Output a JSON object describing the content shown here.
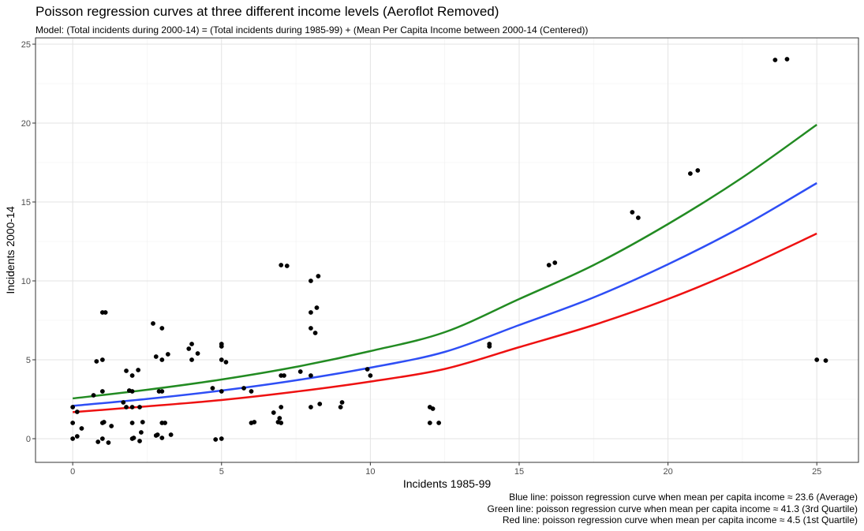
{
  "chart_data": {
    "type": "scatter",
    "title": "Poisson regression curves at three different income levels (Aeroflot Removed)",
    "subtitle": "Model: (Total incidents during 2000-14) = (Total incidents during 1985-99) + (Mean Per Capita Income between 2000-14 (Centered))",
    "xlabel": "Incidents 1985-99",
    "ylabel": "Incidents 2000-14",
    "xlim": [
      -1.25,
      26.4
    ],
    "ylim": [
      -1.5,
      25.4
    ],
    "x_ticks": [
      0,
      5,
      10,
      15,
      20,
      25
    ],
    "y_ticks": [
      0,
      5,
      10,
      15,
      20,
      25
    ],
    "grid": true,
    "points": [
      [
        0,
        2
      ],
      [
        0,
        1
      ],
      [
        0,
        0
      ],
      [
        0.15,
        1.7
      ],
      [
        0.15,
        0.15
      ],
      [
        0.3,
        0.65
      ],
      [
        0.7,
        2.75
      ],
      [
        0.8,
        4.9
      ],
      [
        0.85,
        -0.2
      ],
      [
        1.0,
        5.0
      ],
      [
        1.0,
        3.0
      ],
      [
        1.0,
        1.0
      ],
      [
        1.05,
        1.05
      ],
      [
        1.0,
        0.0
      ],
      [
        1.2,
        -0.25
      ],
      [
        1.3,
        0.8
      ],
      [
        1.0,
        8.0
      ],
      [
        1.1,
        8.0
      ],
      [
        1.7,
        2.3
      ],
      [
        1.8,
        4.3
      ],
      [
        1.8,
        2.0
      ],
      [
        1.9,
        3.05
      ],
      [
        2.0,
        3.0
      ],
      [
        2.0,
        4.0
      ],
      [
        2.0,
        2.0
      ],
      [
        2.0,
        1.0
      ],
      [
        2.0,
        0.0
      ],
      [
        2.05,
        0.05
      ],
      [
        2.2,
        4.35
      ],
      [
        2.25,
        2.0
      ],
      [
        2.25,
        -0.15
      ],
      [
        2.3,
        0.4
      ],
      [
        2.35,
        1.05
      ],
      [
        2.7,
        7.3
      ],
      [
        2.8,
        5.2
      ],
      [
        2.8,
        0.2
      ],
      [
        2.85,
        0.25
      ],
      [
        2.9,
        3.0
      ],
      [
        3.0,
        3.0
      ],
      [
        3.0,
        5.0
      ],
      [
        3.0,
        7.0
      ],
      [
        3.0,
        1.0
      ],
      [
        3.1,
        1.0
      ],
      [
        3.0,
        0.05
      ],
      [
        3.2,
        5.35
      ],
      [
        3.3,
        0.25
      ],
      [
        3.9,
        5.7
      ],
      [
        4.0,
        6.0
      ],
      [
        4.0,
        5.0
      ],
      [
        4.2,
        5.4
      ],
      [
        4.7,
        3.2
      ],
      [
        4.8,
        -0.05
      ],
      [
        5.0,
        0.0
      ],
      [
        5.0,
        6.0
      ],
      [
        5.0,
        5.85
      ],
      [
        5.0,
        5.0
      ],
      [
        5.0,
        3.0
      ],
      [
        5.15,
        4.85
      ],
      [
        5.75,
        3.2
      ],
      [
        6.0,
        3.0
      ],
      [
        6.0,
        1.0
      ],
      [
        6.1,
        1.05
      ],
      [
        6.75,
        1.65
      ],
      [
        6.9,
        1.05
      ],
      [
        6.95,
        1.3
      ],
      [
        7.0,
        1.0
      ],
      [
        7.0,
        2.0
      ],
      [
        7.0,
        4.0
      ],
      [
        7.1,
        4.0
      ],
      [
        7.0,
        11.0
      ],
      [
        7.2,
        10.95
      ],
      [
        7.65,
        4.25
      ],
      [
        8.0,
        10.0
      ],
      [
        8.0,
        8.0
      ],
      [
        8.0,
        7.0
      ],
      [
        8.0,
        4.0
      ],
      [
        8.0,
        2.0
      ],
      [
        8.15,
        6.7
      ],
      [
        8.2,
        8.3
      ],
      [
        8.25,
        10.3
      ],
      [
        8.3,
        2.2
      ],
      [
        9.0,
        2.0
      ],
      [
        9.05,
        2.3
      ],
      [
        9.9,
        4.4
      ],
      [
        10.0,
        4.0
      ],
      [
        12.0,
        2.0
      ],
      [
        12.1,
        1.9
      ],
      [
        12.0,
        1.0
      ],
      [
        12.3,
        1.0
      ],
      [
        14.0,
        6.0
      ],
      [
        14.0,
        5.85
      ],
      [
        16.0,
        11.0
      ],
      [
        16.2,
        11.15
      ],
      [
        18.8,
        14.35
      ],
      [
        19.0,
        14.0
      ],
      [
        20.75,
        16.8
      ],
      [
        21.0,
        17.0
      ],
      [
        23.6,
        24.0
      ],
      [
        24.0,
        24.05
      ],
      [
        25.0,
        5.0
      ],
      [
        25.3,
        4.95
      ]
    ],
    "series": [
      {
        "name": "Green line",
        "color": "#228B22",
        "x": [
          0,
          2.5,
          5,
          7.5,
          10,
          12.5,
          15,
          17.5,
          20,
          22.5,
          25
        ],
        "values": [
          2.55,
          3.1,
          3.75,
          4.55,
          5.55,
          6.75,
          8.85,
          11.0,
          13.6,
          16.55,
          19.9
        ]
      },
      {
        "name": "Blue line",
        "color": "#2E4EF5",
        "x": [
          0,
          2.5,
          5,
          7.5,
          10,
          12.5,
          15,
          17.5,
          20,
          22.5,
          25
        ],
        "values": [
          2.08,
          2.52,
          3.05,
          3.7,
          4.5,
          5.5,
          7.2,
          8.95,
          11.05,
          13.45,
          16.2
        ]
      },
      {
        "name": "Red line",
        "color": "#EE1111",
        "x": [
          0,
          2.5,
          5,
          7.5,
          10,
          12.5,
          15,
          17.5,
          20,
          22.5,
          25
        ],
        "values": [
          1.68,
          2.05,
          2.45,
          2.98,
          3.62,
          4.42,
          5.8,
          7.2,
          8.85,
          10.8,
          13.0
        ]
      }
    ],
    "caption": [
      "Blue line: poisson regression curve when mean per capita income ≈ 23.6 (Average)",
      "Green line: poisson regression curve when mean per capita income ≈ 41.3 (3rd Quartile)",
      "Red line: poisson regression curve when mean per capita income ≈ 4.5 (1st Quartile)"
    ]
  }
}
